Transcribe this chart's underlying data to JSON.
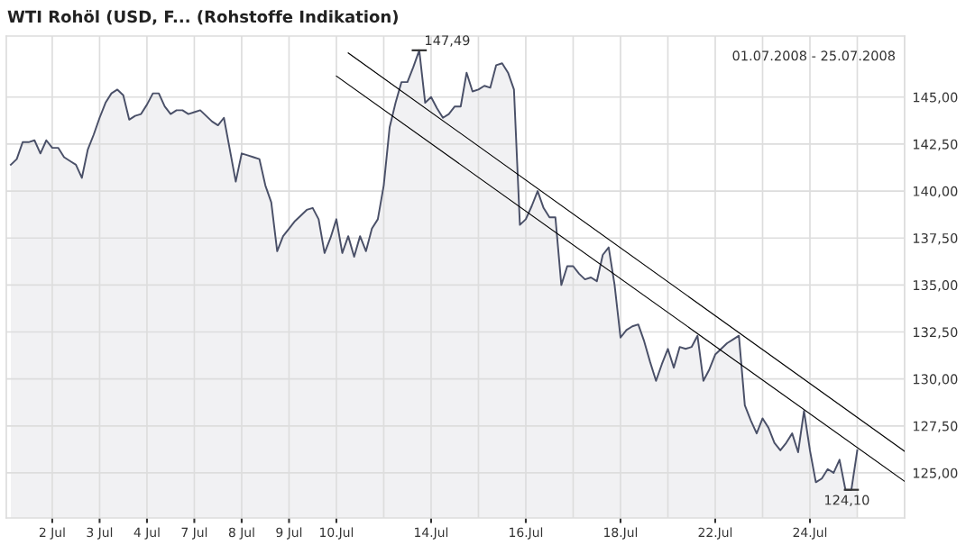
{
  "chart_data": {
    "type": "area",
    "title": "WTI Rohöl (USD, F... (Rohstoffe Indikation)",
    "categories": [
      null,
      null,
      null,
      null,
      null,
      null,
      null,
      "2 Jul",
      null,
      null,
      null,
      null,
      null,
      null,
      null,
      "3 Jul",
      null,
      null,
      null,
      null,
      null,
      null,
      null,
      "4 Jul",
      null,
      null,
      null,
      null,
      null,
      null,
      null,
      "7 Jul",
      null,
      null,
      null,
      null,
      null,
      null,
      null,
      "8 Jul",
      null,
      null,
      null,
      null,
      null,
      null,
      null,
      "9 Jul",
      null,
      null,
      null,
      null,
      null,
      null,
      null,
      "10.Jul",
      null,
      null,
      null,
      null,
      null,
      null,
      null,
      null,
      null,
      null,
      null,
      null,
      null,
      null,
      null,
      "14.Jul",
      null,
      null,
      null,
      null,
      null,
      null,
      null,
      null,
      null,
      null,
      null,
      null,
      null,
      null,
      null,
      "16.Jul",
      null,
      null,
      null,
      null,
      null,
      null,
      null,
      null,
      null,
      null,
      null,
      null,
      null,
      null,
      null,
      "18.Jul",
      null,
      null,
      null,
      null,
      null,
      null,
      null,
      null,
      null,
      null,
      null,
      null,
      null,
      null,
      null,
      "22.Jul",
      null,
      null,
      null,
      null,
      null,
      null,
      null,
      null,
      null,
      null,
      null,
      null,
      null,
      null,
      null,
      "24.Jul",
      null,
      null,
      null,
      null,
      null,
      null,
      null,
      null,
      null,
      null,
      null,
      null,
      null,
      null,
      null,
      null
    ],
    "ylim": [
      122.6,
      148.25
    ],
    "yticks": [
      {
        "value": 125,
        "label": "125,00"
      },
      {
        "value": 127.5,
        "label": "127,50"
      },
      {
        "value": 130,
        "label": "130,00"
      },
      {
        "value": 132.5,
        "label": "132,50"
      },
      {
        "value": 135,
        "label": "135,00"
      },
      {
        "value": 137.5,
        "label": "137,50"
      },
      {
        "value": 140,
        "label": "140,00"
      },
      {
        "value": 142.5,
        "label": "142,50"
      },
      {
        "value": 145,
        "label": "145,00"
      }
    ],
    "grid": true,
    "series": [
      {
        "color": "#4a5068",
        "values": [
          141.4,
          141.7,
          142.6,
          142.6,
          142.7,
          142.0,
          142.7,
          142.3,
          142.3,
          141.8,
          141.6,
          141.4,
          140.7,
          142.2,
          143.0,
          143.9,
          144.7,
          145.2,
          145.4,
          145.1,
          143.8,
          144.0,
          144.1,
          144.6,
          145.2,
          145.2,
          144.5,
          144.1,
          144.3,
          144.3,
          144.1,
          144.2,
          144.3,
          144.0,
          143.7,
          143.5,
          143.9,
          142.2,
          140.5,
          142.0,
          141.9,
          141.8,
          141.7,
          140.3,
          139.4,
          136.8,
          137.6,
          138.0,
          138.4,
          138.7,
          139.0,
          139.1,
          138.5,
          136.7,
          137.5,
          138.5,
          136.7,
          137.6,
          136.5,
          137.6,
          136.8,
          138.0,
          138.5,
          140.3,
          143.4,
          144.7,
          145.8,
          145.8,
          146.6,
          147.49,
          144.7,
          145.0,
          144.4,
          143.9,
          144.1,
          144.5,
          144.5,
          146.3,
          145.3,
          145.4,
          145.6,
          145.5,
          146.7,
          146.8,
          146.3,
          145.4,
          138.2,
          138.5,
          139.2,
          140.0,
          139.1,
          138.6,
          138.6,
          135.0,
          136.0,
          136.0,
          135.6,
          135.3,
          135.4,
          135.2,
          136.6,
          137.0,
          135.0,
          132.2,
          132.6,
          132.8,
          132.9,
          132.0,
          130.9,
          129.9,
          130.8,
          131.6,
          130.6,
          131.7,
          131.6,
          131.7,
          132.3,
          129.9,
          130.5,
          131.3,
          131.6,
          131.9,
          132.1,
          132.3,
          128.6,
          127.8,
          127.1,
          127.9,
          127.4,
          126.6,
          126.2,
          126.6,
          127.1,
          126.1,
          128.3,
          126.2,
          124.5,
          124.7,
          125.2,
          125.0,
          125.7,
          124.1,
          124.1,
          126.2,
          null,
          null,
          null,
          null,
          null,
          null,
          null,
          null
        ],
        "value_labels": [
          null,
          null,
          null,
          null,
          null,
          null,
          null,
          null,
          null,
          null,
          null,
          null,
          null,
          null,
          null,
          null,
          null,
          null,
          null,
          null,
          null,
          null,
          null,
          null,
          null,
          null,
          null,
          null,
          null,
          null,
          null,
          null,
          null,
          null,
          null,
          null,
          null,
          null,
          null,
          null,
          null,
          null,
          null,
          null,
          null,
          null,
          null,
          null,
          null,
          null,
          null,
          null,
          null,
          null,
          null,
          null,
          null,
          null,
          null,
          null,
          null,
          null,
          null,
          null,
          null,
          null,
          null,
          null,
          null,
          "147,49",
          null,
          null,
          null,
          null,
          null,
          null,
          null,
          null,
          null,
          null,
          null,
          null,
          null,
          null,
          null,
          null,
          null,
          null,
          null,
          null,
          null,
          null,
          null,
          null,
          null,
          null,
          null,
          null,
          null,
          null,
          null,
          null,
          null,
          null,
          null,
          null,
          null,
          null,
          null,
          null,
          null,
          null,
          null,
          null,
          null,
          null,
          null,
          null,
          null,
          null,
          null,
          null,
          null,
          null,
          null,
          null,
          null,
          null,
          null,
          null,
          null,
          null,
          null,
          null,
          null,
          null,
          null,
          null,
          null,
          null,
          null,
          null,
          "124,10",
          null,
          null,
          null,
          null,
          null,
          null,
          null,
          null,
          null
        ]
      },
      {
        "type": "line",
        "color": "#000000",
        "values": [
          null,
          null,
          null,
          null,
          null,
          null,
          null,
          null,
          null,
          null,
          null,
          null,
          null,
          null,
          null,
          null,
          null,
          null,
          null,
          null,
          null,
          null,
          null,
          null,
          null,
          null,
          null,
          null,
          null,
          null,
          null,
          null,
          null,
          null,
          null,
          null,
          null,
          null,
          null,
          null,
          null,
          null,
          null,
          null,
          null,
          null,
          null,
          null,
          null,
          null,
          null,
          null,
          null,
          null,
          null,
          null,
          null,
          147.35,
          null,
          null,
          null,
          null,
          null,
          null,
          null,
          null,
          null,
          null,
          null,
          null,
          null,
          null,
          null,
          null,
          null,
          null,
          null,
          null,
          null,
          null,
          null,
          null,
          null,
          null,
          null,
          null,
          null,
          null,
          null,
          null,
          null,
          null,
          null,
          null,
          null,
          null,
          null,
          null,
          null,
          null,
          null,
          null,
          null,
          null,
          null,
          null,
          null,
          null,
          null,
          null,
          null,
          null,
          null,
          null,
          null,
          null,
          null,
          null,
          null,
          null,
          null,
          null,
          null,
          null,
          null,
          null,
          null,
          null,
          null,
          null,
          null,
          null,
          null,
          null,
          null,
          null,
          null,
          null,
          null,
          null,
          null,
          null,
          null,
          null,
          null,
          null,
          null,
          null,
          null,
          null,
          null,
          126.15
        ]
      },
      {
        "type": "line",
        "color": "#000000",
        "values": [
          null,
          null,
          null,
          null,
          null,
          null,
          null,
          null,
          null,
          null,
          null,
          null,
          null,
          null,
          null,
          null,
          null,
          null,
          null,
          null,
          null,
          null,
          null,
          null,
          null,
          null,
          null,
          null,
          null,
          null,
          null,
          null,
          null,
          null,
          null,
          null,
          null,
          null,
          null,
          null,
          null,
          null,
          null,
          null,
          null,
          null,
          null,
          null,
          null,
          null,
          null,
          null,
          null,
          null,
          null,
          146.12,
          null,
          null,
          null,
          null,
          null,
          null,
          null,
          null,
          null,
          null,
          null,
          null,
          null,
          null,
          null,
          null,
          null,
          null,
          null,
          null,
          null,
          null,
          null,
          null,
          null,
          null,
          null,
          null,
          null,
          null,
          null,
          null,
          null,
          null,
          null,
          null,
          null,
          null,
          null,
          null,
          null,
          null,
          null,
          null,
          null,
          null,
          null,
          null,
          null,
          null,
          null,
          null,
          null,
          null,
          null,
          null,
          null,
          null,
          null,
          null,
          null,
          null,
          null,
          null,
          null,
          null,
          null,
          null,
          null,
          null,
          null,
          null,
          null,
          null,
          null,
          null,
          null,
          null,
          null,
          null,
          null,
          null,
          null,
          null,
          null,
          null,
          null,
          null,
          null,
          null,
          null,
          null,
          null,
          null,
          null,
          124.55
        ]
      }
    ],
    "annotations": [
      "01.07.2008 - 25.07.2008"
    ]
  }
}
